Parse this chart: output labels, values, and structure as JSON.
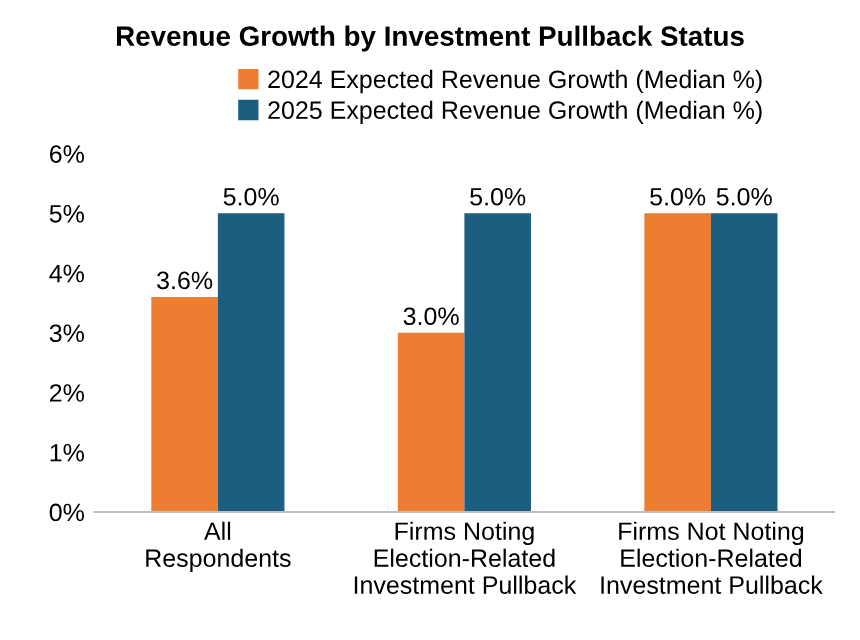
{
  "chart_data": {
    "type": "bar",
    "title": "Revenue Growth by Investment Pullback Status",
    "categories": [
      "All\nRespondents",
      "Firms Noting\nElection-Related\nInvestment Pullback",
      "Firms Not Noting\nElection-Related\nInvestment Pullback"
    ],
    "series": [
      {
        "name": "2024 Expected Revenue Growth (Median %)",
        "color": "#ed7d31",
        "values": [
          3.6,
          3.0,
          5.0
        ],
        "value_labels": [
          "3.6%",
          "3.0%",
          "5.0%"
        ]
      },
      {
        "name": "2025 Expected Revenue Growth (Median %)",
        "color": "#1b5e7f",
        "values": [
          5.0,
          5.0,
          5.0
        ],
        "value_labels": [
          "5.0%",
          "5.0%",
          "5.0%"
        ]
      }
    ],
    "ylim": [
      0,
      6
    ],
    "yticks": [
      {
        "value": 0,
        "label": "0%"
      },
      {
        "value": 1,
        "label": "1%"
      },
      {
        "value": 2,
        "label": "2%"
      },
      {
        "value": 3,
        "label": "3%"
      },
      {
        "value": 4,
        "label": "4%"
      },
      {
        "value": 5,
        "label": "5%"
      },
      {
        "value": 6,
        "label": "6%"
      }
    ],
    "grid": false,
    "legend": "top"
  }
}
